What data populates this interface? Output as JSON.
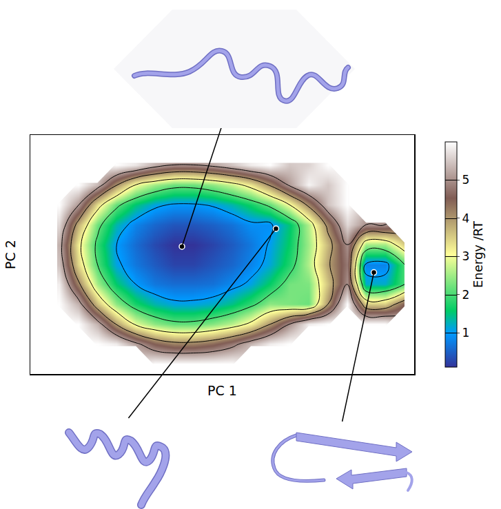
{
  "chart_data": {
    "type": "contour",
    "x_label": "PC 1",
    "y_label": "PC 2",
    "xlim": [
      0,
      20
    ],
    "ylim": [
      0,
      12
    ],
    "tick_labels": false,
    "x": [
      0.5,
      1.5,
      2.5,
      3.5,
      4.5,
      5.5,
      6.5,
      7.5,
      8.5,
      9.5,
      10.5,
      11.5,
      12.5,
      13.5,
      14.5,
      15.5,
      16.5,
      17.5,
      18.5,
      19.5
    ],
    "y": [
      0.5,
      1.5,
      2.5,
      3.5,
      4.5,
      5.5,
      6.5,
      7.5,
      8.5,
      9.5,
      10.5,
      11.5
    ],
    "z": [
      [
        null,
        null,
        null,
        null,
        null,
        null,
        6.0,
        6.0,
        6.0,
        6.0,
        6.0,
        null,
        null,
        null,
        null,
        null,
        null,
        null,
        null,
        null
      ],
      [
        null,
        null,
        null,
        6.0,
        5.85,
        5.15,
        4.5,
        4.2,
        4.2,
        4.4,
        4.8,
        5.35,
        5.85,
        6.0,
        null,
        null,
        null,
        null,
        null,
        null
      ],
      [
        null,
        null,
        6.0,
        5.3,
        3.95,
        2.9,
        2.4,
        2.15,
        2.15,
        2.35,
        2.65,
        3.15,
        4.0,
        5.0,
        5.85,
        6.0,
        null,
        6.0,
        6.0,
        null
      ],
      [
        null,
        6.0,
        5.3,
        3.6,
        2.4,
        1.7,
        1.3,
        1.1,
        1.1,
        1.2,
        1.45,
        1.85,
        2.4,
        2.3,
        2.2,
        4.0,
        6.0,
        3.5,
        3.5,
        4.5
      ],
      [
        null,
        5.85,
        4.15,
        2.5,
        1.55,
        1.0,
        0.7,
        0.6,
        0.6,
        0.65,
        0.85,
        1.1,
        1.6,
        2.25,
        2.3,
        3.6,
        5.0,
        1.2,
        1.2,
        2.0
      ],
      [
        null,
        5.45,
        3.4,
        2.0,
        1.1,
        0.7,
        0.45,
        0.25,
        0.25,
        0.4,
        0.55,
        0.8,
        1.15,
        1.75,
        2.6,
        3.9,
        4.8,
        0.8,
        0.8,
        2.0
      ],
      [
        null,
        5.3,
        3.2,
        1.85,
        1.0,
        0.6,
        0.3,
        0.1,
        0.1,
        0.25,
        0.45,
        0.7,
        1.05,
        1.6,
        2.5,
        3.7,
        5.0,
        2.5,
        2.5,
        3.5
      ],
      [
        null,
        5.65,
        3.75,
        2.2,
        1.3,
        0.8,
        0.55,
        0.4,
        0.4,
        0.5,
        0.65,
        0.9,
        0.9,
        1.5,
        2.6,
        4.2,
        5.65,
        5.0,
        5.0,
        null
      ],
      [
        null,
        6.0,
        5.05,
        3.3,
        2.15,
        1.5,
        1.1,
        0.95,
        0.95,
        1.05,
        1.3,
        1.65,
        2.15,
        3.0,
        4.15,
        5.45,
        6.0,
        null,
        null,
        null
      ],
      [
        null,
        null,
        6.0,
        5.35,
        4.05,
        3.0,
        2.5,
        2.2,
        2.2,
        2.4,
        2.75,
        3.25,
        4.1,
        5.1,
        5.9,
        5.5,
        6.0,
        null,
        null,
        null
      ],
      [
        null,
        null,
        null,
        null,
        6.0,
        5.8,
        5.3,
        5.0,
        5.0,
        5.2,
        5.5,
        5.85,
        6.0,
        5.5,
        5.6,
        6.0,
        null,
        null,
        null,
        null
      ],
      [
        null,
        null,
        null,
        null,
        null,
        null,
        null,
        null,
        null,
        null,
        null,
        null,
        null,
        null,
        null,
        null,
        null,
        null,
        null,
        null
      ]
    ],
    "contour_levels": [
      1,
      2,
      3,
      4,
      5
    ],
    "colorbar": {
      "title": "Energy /RT",
      "range": [
        0.1,
        6
      ],
      "ticks": [
        1,
        2,
        3,
        4,
        5
      ]
    },
    "points": {
      "x": [
        7.9,
        12.8,
        17.9
      ],
      "y": [
        6.4,
        7.3,
        5.1
      ]
    }
  }
}
